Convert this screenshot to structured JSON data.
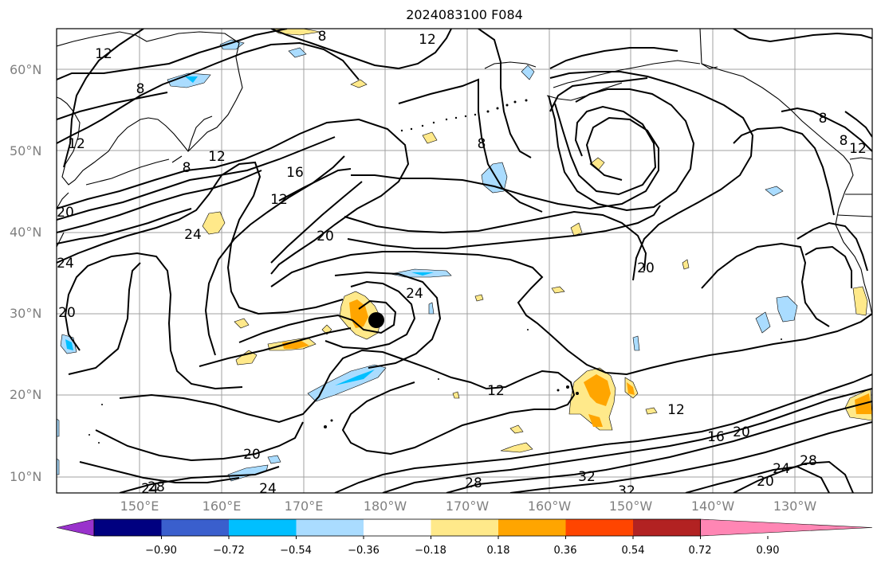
{
  "title": "2024083100 F084",
  "lat_labels": [
    "60°N",
    "50°N",
    "40°N",
    "30°N",
    "20°N",
    "10°N"
  ],
  "lon_labels": [
    "150°E",
    "160°E",
    "170°E",
    "180°W",
    "170°W",
    "160°W",
    "150°W",
    "140°W",
    "130°W"
  ],
  "colorbar": {
    "ticks": [
      "−0.90",
      "−0.72",
      "−0.54",
      "−0.36",
      "−0.18",
      "0.18",
      "0.36",
      "0.54",
      "0.72",
      "0.90"
    ],
    "colors": [
      "#9932cc",
      "#000080",
      "#3a5fcd",
      "#00bfff",
      "#aadcff",
      "#ffffff",
      "#ffe98a",
      "#ffa500",
      "#ff4500",
      "#b22222",
      "#ff86b4"
    ]
  },
  "contour_labels": [
    "8",
    "12",
    "8",
    "12",
    "8",
    "12",
    "16",
    "12",
    "24",
    "20",
    "24",
    "24",
    "20",
    "20",
    "24",
    "12",
    "12",
    "20",
    "16",
    "20",
    "24",
    "28",
    "32",
    "32",
    "28",
    "20",
    "24",
    "28",
    "8",
    "8",
    "12",
    "8",
    "12",
    "20"
  ]
}
